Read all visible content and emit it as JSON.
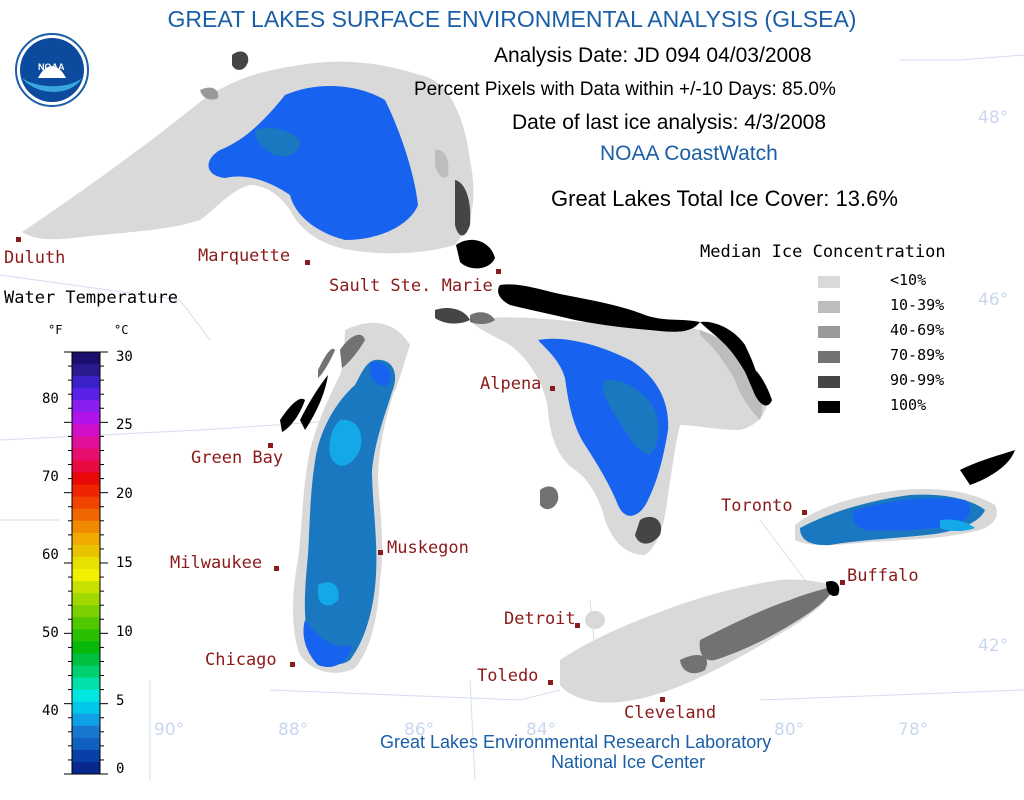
{
  "title": "GREAT LAKES SURFACE ENVIRONMENTAL ANALYSIS (GLSEA)",
  "analysis_date": "Analysis Date:  JD 094 04/03/2008",
  "percent_pixels": "Percent Pixels with Data within +/-10 Days:  85.0%",
  "last_ice": "Date of last ice analysis: 4/3/2008",
  "coastwatch": "NOAA CoastWatch",
  "total_ice": "Great Lakes Total Ice Cover:  13.6%",
  "logo_text": "NOAA",
  "footer": {
    "line1": "Great Lakes Environmental Research Laboratory",
    "line2": "National Ice Center"
  },
  "cities": {
    "duluth": "Duluth",
    "marquette": "Marquette",
    "sault": "Sault Ste. Marie",
    "alpena": "Alpena",
    "green_bay": "Green Bay",
    "milwaukee": "Milwaukee",
    "muskegon": "Muskegon",
    "chicago": "Chicago",
    "detroit": "Detroit",
    "toledo": "Toledo",
    "cleveland": "Cleveland",
    "toronto": "Toronto",
    "buffalo": "Buffalo"
  },
  "grid_labels": {
    "lat48": "48°",
    "lat46": "46°",
    "lat42": "42°",
    "lon90": "90°",
    "lon88": "88°",
    "lon86": "86°",
    "lon84": "84°",
    "lon80": "80°",
    "lon78": "78°"
  },
  "temp_legend": {
    "title": "Water Temperature",
    "f_unit": "°F",
    "c_unit": "°C",
    "f_ticks": [
      "80",
      "70",
      "60",
      "50",
      "40"
    ],
    "c_ticks": [
      "30",
      "25",
      "20",
      "15",
      "10",
      "5",
      "0"
    ]
  },
  "ice_legend": {
    "title": "Median Ice Concentration",
    "items": [
      {
        "label": "<10%",
        "color": "#d9d9d9"
      },
      {
        "label": "10-39%",
        "color": "#bdbdbd"
      },
      {
        "label": "40-69%",
        "color": "#9a9a9a"
      },
      {
        "label": "70-89%",
        "color": "#727272"
      },
      {
        "label": "90-99%",
        "color": "#454545"
      },
      {
        "label": "100%",
        "color": "#000000"
      }
    ]
  },
  "colors": {
    "title_blue": "#1a5ea8",
    "city_red": "#8b1a1a",
    "lake_blue": "#1763f0",
    "lake_teal": "#1a78c0",
    "lake_cyan": "#14a8e8"
  }
}
